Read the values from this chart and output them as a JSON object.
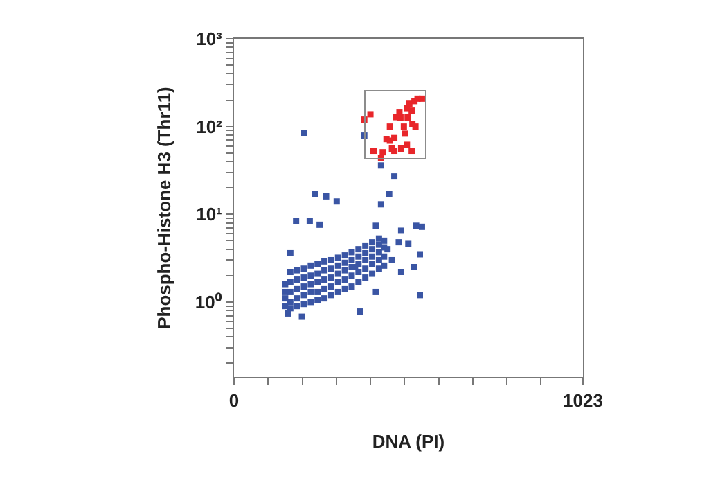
{
  "chart_data": {
    "type": "scatter",
    "xlabel": "DNA (PI)",
    "ylabel": "Phospho-Histone H3 (Thr11)",
    "log": "y",
    "grid": false,
    "marker": "square",
    "xlim": [
      0,
      1023
    ],
    "xticks": [
      0,
      {
        "value": 100,
        "label": null
      },
      {
        "value": 200,
        "label": null
      },
      {
        "value": 300,
        "label": null
      },
      {
        "value": 400,
        "label": null
      },
      {
        "value": 500,
        "label": null
      },
      {
        "value": 600,
        "label": null
      },
      {
        "value": 700,
        "label": null
      },
      {
        "value": 800,
        "label": null
      },
      {
        "value": 900,
        "label": null
      },
      1023
    ],
    "ylim": [
      0.14,
      1000
    ],
    "yticks": [
      {
        "value": 0.2,
        "label": null
      },
      {
        "value": 0.3,
        "label": null
      },
      {
        "value": 0.4,
        "label": null
      },
      {
        "value": 0.5,
        "label": null
      },
      {
        "value": 0.6,
        "label": null
      },
      {
        "value": 0.7,
        "label": null
      },
      {
        "value": 0.8,
        "label": null
      },
      {
        "value": 0.9,
        "label": null
      },
      {
        "value": 1,
        "label": "10⁰"
      },
      {
        "value": 2,
        "label": null
      },
      {
        "value": 3,
        "label": null
      },
      {
        "value": 4,
        "label": null
      },
      {
        "value": 5,
        "label": null
      },
      {
        "value": 6,
        "label": null
      },
      {
        "value": 7,
        "label": null
      },
      {
        "value": 8,
        "label": null
      },
      {
        "value": 9,
        "label": null
      },
      {
        "value": 10,
        "label": "10¹"
      },
      {
        "value": 20,
        "label": null
      },
      {
        "value": 30,
        "label": null
      },
      {
        "value": 40,
        "label": null
      },
      {
        "value": 50,
        "label": null
      },
      {
        "value": 60,
        "label": null
      },
      {
        "value": 70,
        "label": null
      },
      {
        "value": 80,
        "label": null
      },
      {
        "value": 90,
        "label": null
      },
      {
        "value": 100,
        "label": "10²"
      },
      {
        "value": 200,
        "label": null
      },
      {
        "value": 300,
        "label": null
      },
      {
        "value": 400,
        "label": null
      },
      {
        "value": 500,
        "label": null
      },
      {
        "value": 600,
        "label": null
      },
      {
        "value": 700,
        "label": null
      },
      {
        "value": 800,
        "label": null
      },
      {
        "value": 900,
        "label": null
      },
      {
        "value": 1000,
        "label": "10³"
      }
    ],
    "series": [
      {
        "color": "#3a55a4",
        "x": [
          150,
          150,
          150,
          150,
          165,
          165,
          165,
          165,
          165,
          185,
          185,
          185,
          185,
          185,
          205,
          205,
          205,
          205,
          205,
          225,
          225,
          225,
          225,
          225,
          245,
          245,
          245,
          245,
          245,
          265,
          265,
          265,
          265,
          265,
          285,
          285,
          285,
          285,
          285,
          305,
          305,
          305,
          305,
          305,
          325,
          325,
          325,
          325,
          325,
          345,
          345,
          345,
          345,
          345,
          365,
          365,
          365,
          365,
          365,
          385,
          385,
          385,
          385,
          385,
          405,
          405,
          405,
          405,
          405,
          425,
          425,
          425,
          425,
          425,
          440,
          440,
          440,
          440,
          206,
          237,
          270,
          301,
          182,
          222,
          251,
          382,
          431,
          470,
          455,
          431,
          416,
          534,
          551,
          490,
          511,
          545,
          527,
          490,
          545,
          369,
          416,
          159,
          199,
          165,
          355,
          450,
          483,
          463
        ],
        "values": [
          0.9,
          1.1,
          1.3,
          1.6,
          0.85,
          1.0,
          1.3,
          1.7,
          2.2,
          0.9,
          1.1,
          1.4,
          1.8,
          2.3,
          0.95,
          1.2,
          1.5,
          1.9,
          2.4,
          1.0,
          1.3,
          1.6,
          2.0,
          2.6,
          1.05,
          1.3,
          1.7,
          2.1,
          2.7,
          1.1,
          1.4,
          1.8,
          2.3,
          2.9,
          1.2,
          1.5,
          1.9,
          2.4,
          3.0,
          1.3,
          1.7,
          2.1,
          2.6,
          3.2,
          1.4,
          1.8,
          2.3,
          2.8,
          3.4,
          1.5,
          2.0,
          2.5,
          3.0,
          3.7,
          1.7,
          2.2,
          2.7,
          3.3,
          4.0,
          1.9,
          2.4,
          3.0,
          3.6,
          4.4,
          2.1,
          2.7,
          3.3,
          4.0,
          4.8,
          2.4,
          3.0,
          3.7,
          4.5,
          5.3,
          2.6,
          3.3,
          4.2,
          5.0,
          85,
          17,
          16,
          14,
          8.3,
          8.3,
          7.6,
          79,
          36,
          27,
          17,
          13,
          7.4,
          7.4,
          7.2,
          6.5,
          4.6,
          3.5,
          2.5,
          2.2,
          1.2,
          0.78,
          1.3,
          0.74,
          0.68,
          3.6,
          2.5,
          4.0,
          4.8,
          3.0
        ]
      },
      {
        "color": "#e8262a",
        "x": [
          382,
          400,
          436,
          447,
          457,
          470,
          474,
          485,
          488,
          498,
          502,
          507,
          514,
          521,
          529,
          538,
          551,
          509,
          523,
          532,
          470,
          463,
          490,
          507,
          521,
          431,
          409,
          457
        ],
        "values": [
          120,
          138,
          51,
          72,
          69,
          74,
          128,
          144,
          127,
          100,
          83,
          162,
          182,
          152,
          195,
          208,
          208,
          127,
          107,
          100,
          53,
          56,
          56,
          62,
          53,
          44,
          53,
          100
        ]
      }
    ]
  }
}
